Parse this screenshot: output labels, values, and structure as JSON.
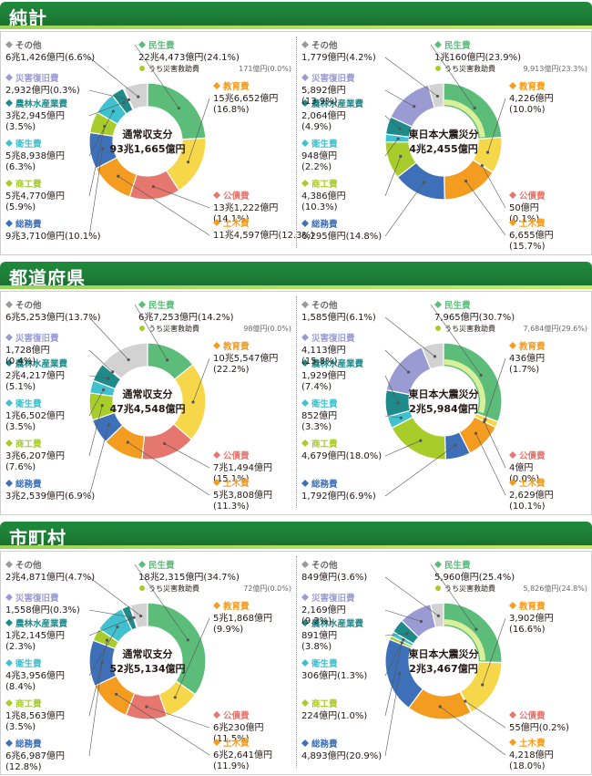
{
  "colors": {
    "minsei": "#5cbd7a",
    "kyoiku": "#f7d74a",
    "kousai": "#e5776f",
    "doboku": "#f39c1f",
    "somu": "#3d70b8",
    "shoko": "#a8cc2a",
    "eisei": "#3fc1cf",
    "norin": "#1f8a8a",
    "saigai": "#9b9bd3",
    "sonota": "#d2d2d2",
    "marker_minsei": "#5cbd7a",
    "marker_uchi": "#a8cc2a",
    "marker_kyoiku": "#f39c1f",
    "marker_kousai": "#e5776f",
    "marker_doboku": "#f39c1f",
    "marker_somu": "#3d70b8",
    "marker_shoko": "#a8cc2a",
    "marker_eisei": "#3fc1cf",
    "marker_norin": "#1f8a8a",
    "marker_saigai": "#9b9bd3",
    "marker_sonota": "#9a9a9a"
  },
  "sections": [
    {
      "title": "純計"
    },
    {
      "title": "都道府県"
    },
    {
      "title": "市町村"
    }
  ],
  "chart_data": [
    {
      "type": "pie",
      "section": "純計",
      "center": [
        "通常収支分",
        "93兆1,665億円"
      ],
      "series": [
        {
          "key": "minsei",
          "name": "民生費",
          "label": "22兆4,473億円(24.1%)",
          "value": 24.1
        },
        {
          "key": "kyoiku",
          "name": "教育費",
          "label": "15兆6,652億円\n(16.8%)",
          "value": 16.8
        },
        {
          "key": "kousai",
          "name": "公債費",
          "label": "13兆1,222億円\n(14.1%)",
          "value": 14.1
        },
        {
          "key": "doboku",
          "name": "土木費",
          "label": "11兆4,597億円(12.3%)",
          "value": 12.3
        },
        {
          "key": "somu",
          "name": "総務費",
          "label": "9兆3,710億円(10.1%)",
          "value": 10.1
        },
        {
          "key": "shoko",
          "name": "商工費",
          "label": "5兆4,770億円\n(5.9%)",
          "value": 5.9
        },
        {
          "key": "eisei",
          "name": "衛生費",
          "label": "5兆8,938億円\n(6.3%)",
          "value": 6.3
        },
        {
          "key": "norin",
          "name": "農林水産業費",
          "label": "3兆2,945億円\n(3.5%)",
          "value": 3.5
        },
        {
          "key": "saigai",
          "name": "災害復旧費",
          "label": "2,932億円(0.3%)",
          "value": 0.3
        },
        {
          "key": "sonota",
          "name": "その他",
          "label": "6兆1,426億円(6.6%)",
          "value": 6.6
        }
      ],
      "inner": {
        "name": "うち災害救助費",
        "label": "171億円(0.0%)",
        "value": 0.0
      }
    },
    {
      "type": "pie",
      "section": "純計",
      "center": [
        "東日本大震災分",
        "4兆2,455億円"
      ],
      "series": [
        {
          "key": "minsei",
          "name": "民生費",
          "label": "1兆160億円(23.9%)",
          "value": 23.9
        },
        {
          "key": "kyoiku",
          "name": "教育費",
          "label": "4,226億円\n(10.0%)",
          "value": 10.0
        },
        {
          "key": "kousai",
          "name": "公債費",
          "label": "50億円\n(0.1%)",
          "value": 0.1
        },
        {
          "key": "doboku",
          "name": "土木費",
          "label": "6,655億円\n(15.7%)",
          "value": 15.7
        },
        {
          "key": "somu",
          "name": "総務費",
          "label": "6,295億円(14.8%)",
          "value": 14.8
        },
        {
          "key": "shoko",
          "name": "商工費",
          "label": "4,386億円\n(10.3%)",
          "value": 10.3
        },
        {
          "key": "eisei",
          "name": "衛生費",
          "label": "948億円\n(2.2%)",
          "value": 2.2
        },
        {
          "key": "norin",
          "name": "農林水産業費",
          "label": "2,064億円\n(4.9%)",
          "value": 4.9
        },
        {
          "key": "saigai",
          "name": "災害復旧費",
          "label": "5,892億円\n(13.9%)",
          "value": 13.9
        },
        {
          "key": "sonota",
          "name": "その他",
          "label": "1,779億円(4.2%)",
          "value": 4.2
        }
      ],
      "inner": {
        "name": "うち災害救助費",
        "label": "9,913億円(23.3%)",
        "value": 23.3
      }
    },
    {
      "type": "pie",
      "section": "都道府県",
      "center": [
        "通常収支分",
        "47兆4,548億円"
      ],
      "series": [
        {
          "key": "minsei",
          "name": "民生費",
          "label": "6兆7,253億円(14.2%)",
          "value": 14.2
        },
        {
          "key": "kyoiku",
          "name": "教育費",
          "label": "10兆5,547億円\n(22.2%)",
          "value": 22.2
        },
        {
          "key": "kousai",
          "name": "公債費",
          "label": "7兆1,494億円\n(15.1%)",
          "value": 15.1
        },
        {
          "key": "doboku",
          "name": "土木費",
          "label": "5兆3,808億円\n(11.3%)",
          "value": 11.3
        },
        {
          "key": "somu",
          "name": "総務費",
          "label": "3兆2,539億円(6.9%)",
          "value": 6.9
        },
        {
          "key": "shoko",
          "name": "商工費",
          "label": "3兆6,207億円\n(7.6%)",
          "value": 7.6
        },
        {
          "key": "eisei",
          "name": "衛生費",
          "label": "1兆6,502億円\n(3.5%)",
          "value": 3.5
        },
        {
          "key": "norin",
          "name": "農林水産業費",
          "label": "2兆4,217億円\n(5.1%)",
          "value": 5.1
        },
        {
          "key": "saigai",
          "name": "災害復旧費",
          "label": "1,728億円\n(0.4%)",
          "value": 0.4
        },
        {
          "key": "sonota",
          "name": "その他",
          "label": "6兆5,253億円(13.7%)",
          "value": 13.7
        }
      ],
      "inner": {
        "name": "うち災害救助費",
        "label": "98億円(0.0%)",
        "value": 0.0
      }
    },
    {
      "type": "pie",
      "section": "都道府県",
      "center": [
        "東日本大震災分",
        "2兆5,984億円"
      ],
      "series": [
        {
          "key": "minsei",
          "name": "民生費",
          "label": "7,965億円(30.7%)",
          "value": 30.7
        },
        {
          "key": "kyoiku",
          "name": "教育費",
          "label": "436億円\n(1.7%)",
          "value": 1.7
        },
        {
          "key": "kousai",
          "name": "公債費",
          "label": "4億円\n(0.0%)",
          "value": 0.0
        },
        {
          "key": "doboku",
          "name": "土木費",
          "label": "2,629億円\n(10.1%)",
          "value": 10.1
        },
        {
          "key": "somu",
          "name": "総務費",
          "label": "1,792億円(6.9%)",
          "value": 6.9
        },
        {
          "key": "shoko",
          "name": "商工費",
          "label": "4,679億円(18.0%)",
          "value": 18.0
        },
        {
          "key": "eisei",
          "name": "衛生費",
          "label": "852億円\n(3.3%)",
          "value": 3.3
        },
        {
          "key": "norin",
          "name": "農林水産業費",
          "label": "1,929億円\n(7.4%)",
          "value": 7.4
        },
        {
          "key": "saigai",
          "name": "災害復旧費",
          "label": "4,113億円\n(15.8%)",
          "value": 15.8
        },
        {
          "key": "sonota",
          "name": "その他",
          "label": "1,585億円(6.1%)",
          "value": 6.1
        }
      ],
      "inner": {
        "name": "うち災害救助費",
        "label": "7,684億円(29.6%)",
        "value": 29.6
      }
    },
    {
      "type": "pie",
      "section": "市町村",
      "center": [
        "通常収支分",
        "52兆5,134億円"
      ],
      "series": [
        {
          "key": "minsei",
          "name": "民生費",
          "label": "18兆2,315億円(34.7%)",
          "value": 34.7
        },
        {
          "key": "kyoiku",
          "name": "教育費",
          "label": "5兆1,868億円\n(9.9%)",
          "value": 9.9
        },
        {
          "key": "kousai",
          "name": "公債費",
          "label": "6兆230億円\n(11.5%)",
          "value": 11.5
        },
        {
          "key": "doboku",
          "name": "土木費",
          "label": "6兆2,641億円\n(11.9%)",
          "value": 11.9
        },
        {
          "key": "somu",
          "name": "総務費",
          "label": "6兆6,987億円\n(12.8%)",
          "value": 12.8
        },
        {
          "key": "shoko",
          "name": "商工費",
          "label": "1兆8,563億円\n(3.5%)",
          "value": 3.5
        },
        {
          "key": "eisei",
          "name": "衛生費",
          "label": "4兆3,956億円\n(8.4%)",
          "value": 8.4
        },
        {
          "key": "norin",
          "name": "農林水産業費",
          "label": "1兆2,145億円\n(2.3%)",
          "value": 2.3
        },
        {
          "key": "saigai",
          "name": "災害復旧費",
          "label": "1,558億円(0.3%)",
          "value": 0.3
        },
        {
          "key": "sonota",
          "name": "その他",
          "label": "2兆4,871億円(4.7%)",
          "value": 4.7
        }
      ],
      "inner": {
        "name": "うち災害救助費",
        "label": "72億円(0.0%)",
        "value": 0.0
      }
    },
    {
      "type": "pie",
      "section": "市町村",
      "center": [
        "東日本大震災分",
        "2兆3,467億円"
      ],
      "series": [
        {
          "key": "minsei",
          "name": "民生費",
          "label": "5,960億円(25.4%)",
          "value": 25.4
        },
        {
          "key": "kyoiku",
          "name": "教育費",
          "label": "3,902億円\n(16.6%)",
          "value": 16.6
        },
        {
          "key": "kousai",
          "name": "公債費",
          "label": "55億円(0.2%)",
          "value": 0.2
        },
        {
          "key": "doboku",
          "name": "土木費",
          "label": "4,218億円\n(18.0%)",
          "value": 18.0
        },
        {
          "key": "somu",
          "name": "総務費",
          "label": "4,893億円(20.9%)",
          "value": 20.9
        },
        {
          "key": "shoko",
          "name": "商工費",
          "label": "224億円(1.0%)",
          "value": 1.0
        },
        {
          "key": "eisei",
          "name": "衛生費",
          "label": "306億円(1.3%)",
          "value": 1.3
        },
        {
          "key": "norin",
          "name": "農林水産業費",
          "label": "891億円\n(3.8%)",
          "value": 3.8
        },
        {
          "key": "saigai",
          "name": "災害復旧費",
          "label": "2,169億円\n(9.2%)",
          "value": 9.2
        },
        {
          "key": "sonota",
          "name": "その他",
          "label": "849億円(3.6%)",
          "value": 3.6
        }
      ],
      "inner": {
        "name": "うち災害救助費",
        "label": "5,826億円(24.8%)",
        "value": 24.8
      }
    }
  ]
}
